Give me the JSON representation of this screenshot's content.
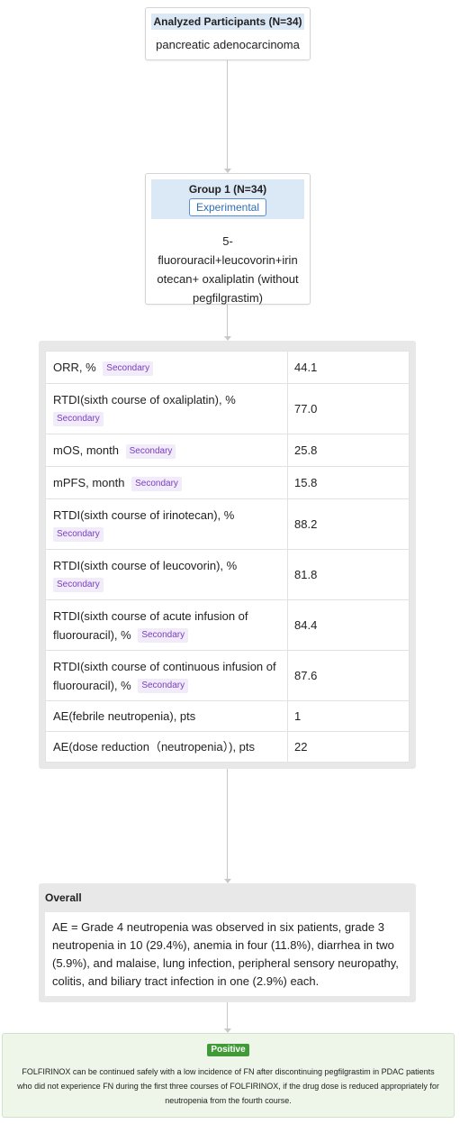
{
  "participants": {
    "title": "Analyzed Participants (N=34)",
    "condition": "pancreatic adenocarcinoma"
  },
  "group": {
    "title": "Group 1 (N=34)",
    "arm_type": "Experimental",
    "intervention_lines": [
      "5-",
      "fluorouracil+leucovorin+irin",
      "otecan+ oxaliplatin (without",
      "pegfilgrastim)"
    ]
  },
  "outcomes": [
    {
      "label": "ORR, %",
      "tag": "Secondary",
      "value": "44.1"
    },
    {
      "label": "RTDI(sixth course of oxaliplatin), %",
      "tag": "Secondary",
      "value": "77.0"
    },
    {
      "label": "mOS, month",
      "tag": "Secondary",
      "value": "25.8"
    },
    {
      "label": "mPFS, month",
      "tag": "Secondary",
      "value": "15.8"
    },
    {
      "label": "RTDI(sixth course of irinotecan), %",
      "tag": "Secondary",
      "value": "88.2"
    },
    {
      "label": "RTDI(sixth course of leucovorin), %",
      "tag": "Secondary",
      "value": "81.8"
    },
    {
      "label": "RTDI(sixth course of acute infusion of fluorouracil), %",
      "tag": "Secondary",
      "value": "84.4"
    },
    {
      "label": "RTDI(sixth course of continuous infusion of fluorouracil), %",
      "tag": "Secondary",
      "value": "87.6"
    },
    {
      "label": "AE(febrile neutropenia), pts",
      "tag": "",
      "value": "1"
    },
    {
      "label": "AE(dose reduction（neutropenia）), pts",
      "tag": "",
      "value": "22"
    }
  ],
  "overall": {
    "title": "Overall",
    "text": "AE = Grade 4 neutropenia was observed in six patients, grade 3 neutropenia in 10 (29.4%), anemia in four (11.8%), diarrhea in two (5.9%), and malaise, lung infection, peripheral sensory neuropathy, colitis, and biliary tract infection in one (2.9%) each."
  },
  "conclusion": {
    "verdict": "Positive",
    "text": "FOLFIRINOX can be continued safely with a low incidence of FN after discontinuing pegfilgrastim in PDAC patients who did not experience FN during the first three courses of FOLFIRINOX, if the drug dose is reduced appropriately for neutropenia from the fourth course."
  },
  "colors": {
    "header_blue": "#dbe8f6",
    "secondary_tag": "#7a3fc2",
    "positive_badge": "#3f9a37",
    "conclusion_bg": "#eef6ea"
  }
}
